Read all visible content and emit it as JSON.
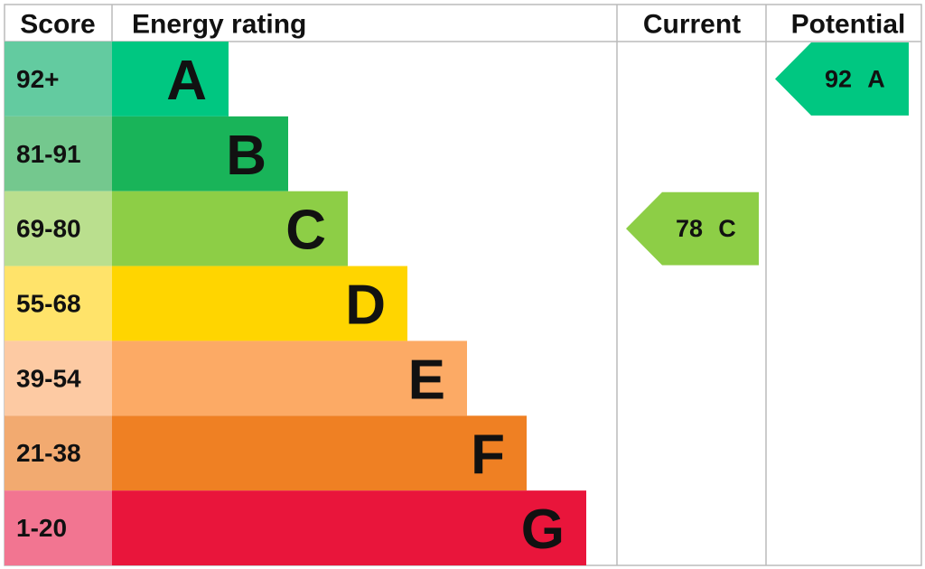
{
  "header": {
    "score": "Score",
    "rating": "Energy rating",
    "current": "Current",
    "potential": "Potential"
  },
  "bands": [
    {
      "score": "92+",
      "letter": "A",
      "color": "#00c781",
      "light": "#63cba0"
    },
    {
      "score": "81-91",
      "letter": "B",
      "color": "#19b459",
      "light": "#74c88e"
    },
    {
      "score": "69-80",
      "letter": "C",
      "color": "#8dce46",
      "light": "#badf8e"
    },
    {
      "score": "55-68",
      "letter": "D",
      "color": "#ffd500",
      "light": "#ffe36a"
    },
    {
      "score": "39-54",
      "letter": "E",
      "color": "#fcaa65",
      "light": "#fdcaa3"
    },
    {
      "score": "21-38",
      "letter": "F",
      "color": "#ef8023",
      "light": "#f2aa70"
    },
    {
      "score": "1-20",
      "letter": "G",
      "color": "#e9153b",
      "light": "#f27591"
    }
  ],
  "current": {
    "value": 78,
    "letter": "C"
  },
  "potential": {
    "value": 92,
    "letter": "A"
  }
}
